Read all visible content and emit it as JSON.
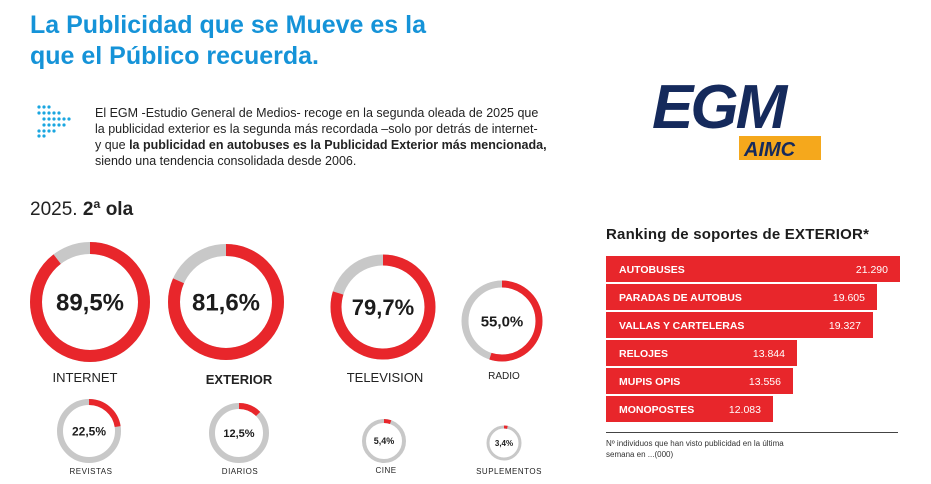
{
  "headline": {
    "line1": "La Publicidad que se Mueve es la",
    "line2": "que el Público recuerda."
  },
  "intro": {
    "line1": "El EGM -Estudio General de Medios- recoge en la segunda oleada de 2025 que",
    "line2": "la publicidad exterior es la segunda más recordada –solo por detrás de internet-",
    "line3_prefix": "y que ",
    "line3_bold": "la publicidad en autobuses es la Publicidad Exterior más mencionada,",
    "line4": "siendo una tendencia consolidada desde 2006."
  },
  "logo": {
    "primary": "EGM",
    "secondary": "AIMC"
  },
  "period": {
    "year": "2025.",
    "wave": "2ª ola"
  },
  "colors": {
    "accent_red": "#e8262b",
    "track_gray": "#c8c8c8",
    "headline_blue": "#1593d8"
  },
  "chart_data": [
    {
      "type": "pie",
      "title": "2025. 2ª ola",
      "series": [
        {
          "name": "INTERNET",
          "value": 89.5,
          "display": "89,5%",
          "emphasis": false
        },
        {
          "name": "EXTERIOR",
          "value": 81.6,
          "display": "81,6%",
          "emphasis": true
        },
        {
          "name": "TELEVISION",
          "value": 79.7,
          "display": "79,7%",
          "emphasis": false
        },
        {
          "name": "RADIO",
          "value": 55.0,
          "display": "55,0%",
          "emphasis": false
        },
        {
          "name": "REVISTAS",
          "value": 22.5,
          "display": "22,5%",
          "emphasis": false
        },
        {
          "name": "DIARIOS",
          "value": 12.5,
          "display": "12,5%",
          "emphasis": false
        },
        {
          "name": "CINE",
          "value": 5.4,
          "display": "5,4%",
          "emphasis": false
        },
        {
          "name": "SUPLEMENTOS",
          "value": 3.4,
          "display": "3,4%",
          "emphasis": false
        }
      ]
    },
    {
      "type": "bar",
      "title": "Ranking de soportes de EXTERIOR*",
      "categories": [
        "AUTOBUSES",
        "PARADAS DE AUTOBUS",
        "VALLAS Y CARTELERAS",
        "RELOJES",
        "MUPIS OPIS",
        "MONOPOSTES"
      ],
      "values": [
        21290,
        19605,
        19327,
        13844,
        13556,
        12083
      ],
      "value_labels": [
        "21.290",
        "19.605",
        "19.327",
        "13.844",
        "13.556",
        "12.083"
      ],
      "xlabel": "",
      "ylabel": "",
      "footnote": "Nº individuos que han visto publicidad en la última semana en ...(000)"
    }
  ]
}
